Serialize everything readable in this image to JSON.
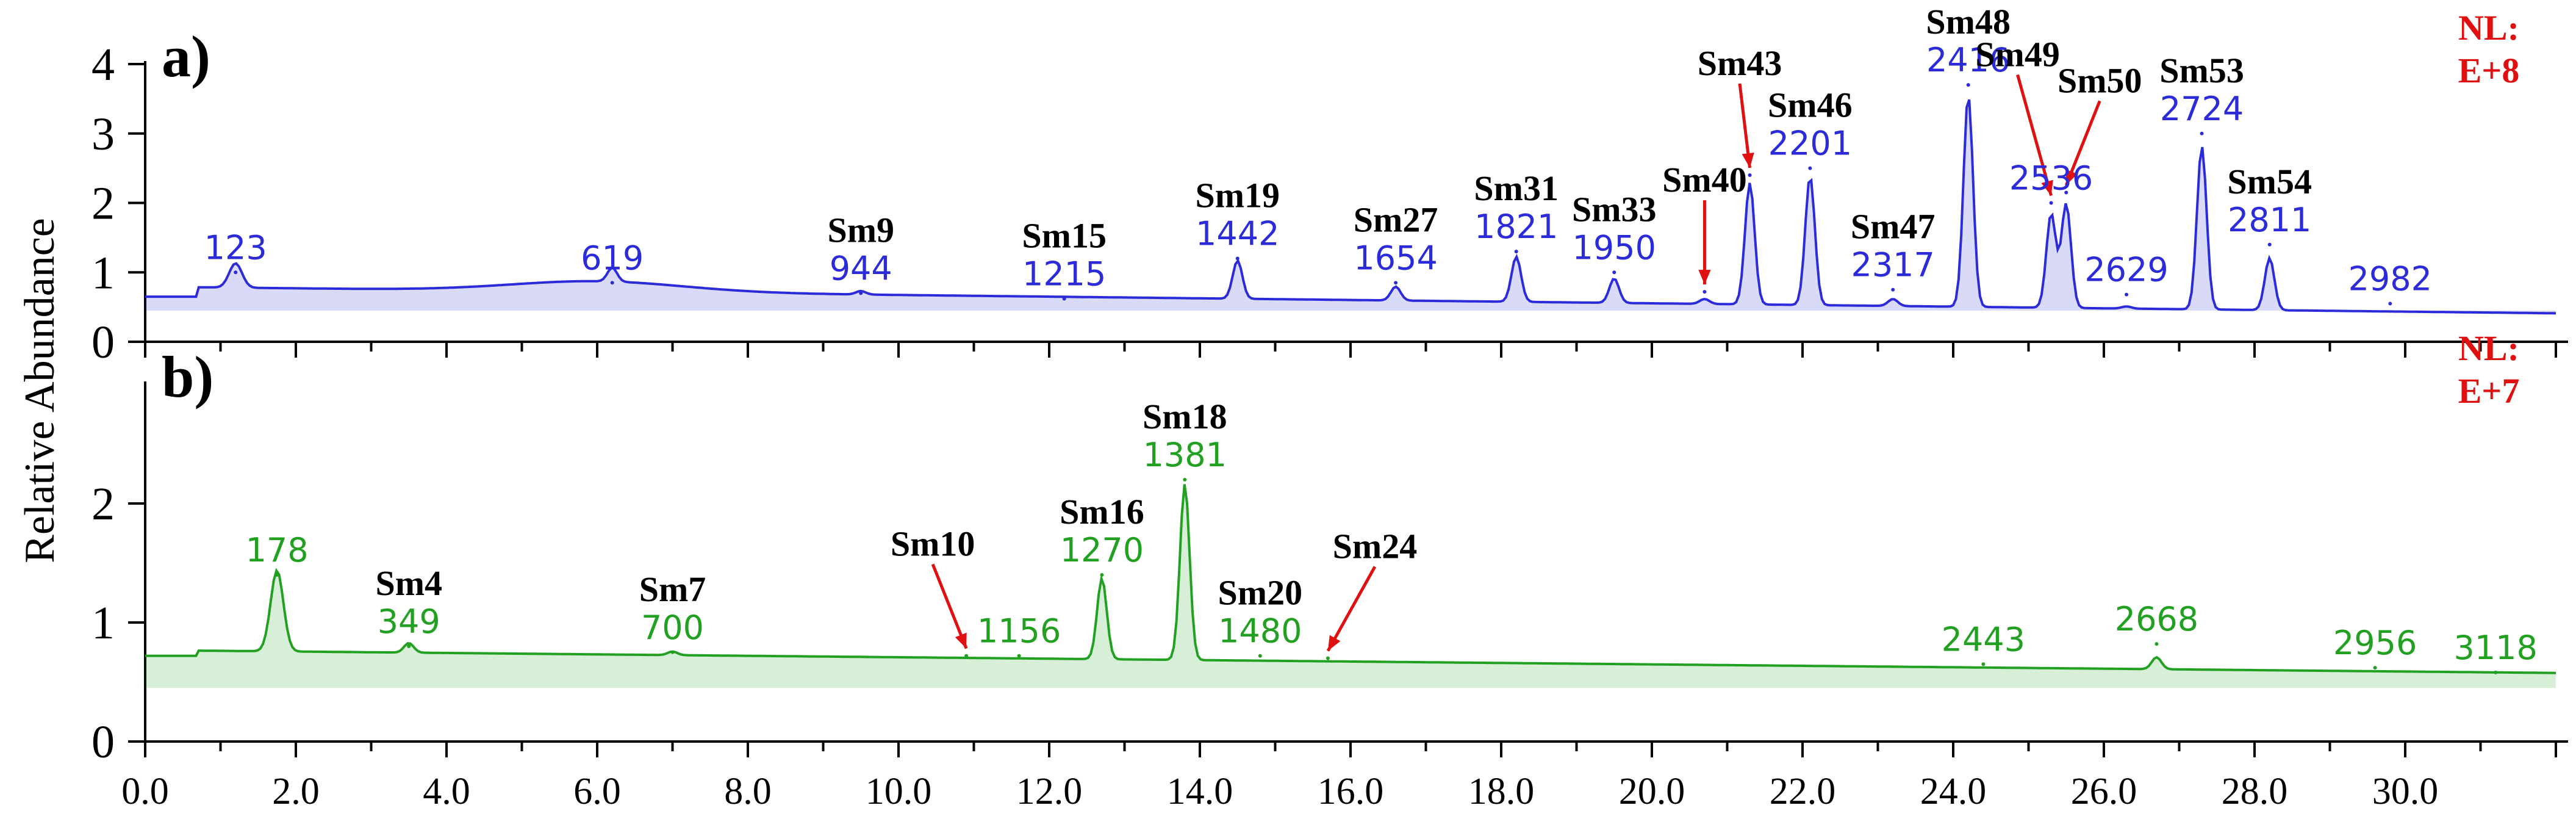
{
  "chart_data": [
    {
      "panel": "a)",
      "type": "line",
      "title": "",
      "xlabel": "",
      "ylabel": "Relative Abundance",
      "xlim": [
        0.0,
        32.0
      ],
      "ylim": [
        0,
        4
      ],
      "yticks": [
        "0",
        "1",
        "2",
        "3",
        "4"
      ],
      "normalization": {
        "line1": "NL:",
        "line2": "E+8"
      },
      "color": "#2b2bd9",
      "baseline": 0.65,
      "peaks": [
        {
          "x": 1.2,
          "y": 1.0,
          "label": "123",
          "compound": ""
        },
        {
          "x": 6.2,
          "y": 0.85,
          "label": "619",
          "compound": ""
        },
        {
          "x": 9.5,
          "y": 0.7,
          "label": "944",
          "compound": "Sm9"
        },
        {
          "x": 12.2,
          "y": 0.62,
          "label": "1215",
          "compound": "Sm15"
        },
        {
          "x": 14.5,
          "y": 1.2,
          "label": "1442",
          "compound": "Sm19"
        },
        {
          "x": 16.6,
          "y": 0.85,
          "label": "1654",
          "compound": "Sm27"
        },
        {
          "x": 18.2,
          "y": 1.3,
          "label": "1821",
          "compound": "Sm31"
        },
        {
          "x": 19.5,
          "y": 1.0,
          "label": "1950",
          "compound": "Sm33"
        },
        {
          "x": 20.7,
          "y": 0.72,
          "label": "",
          "compound": "Sm40"
        },
        {
          "x": 21.3,
          "y": 2.4,
          "label": "",
          "compound": "Sm43"
        },
        {
          "x": 22.1,
          "y": 2.5,
          "label": "2201",
          "compound": "Sm46"
        },
        {
          "x": 23.2,
          "y": 0.75,
          "label": "2317",
          "compound": "Sm47"
        },
        {
          "x": 24.2,
          "y": 3.7,
          "label": "2416",
          "compound": "Sm48"
        },
        {
          "x": 25.3,
          "y": 2.0,
          "label": "2536",
          "compound": "Sm49"
        },
        {
          "x": 25.5,
          "y": 2.15,
          "label": "",
          "compound": "Sm50"
        },
        {
          "x": 26.3,
          "y": 0.68,
          "label": "2629",
          "compound": ""
        },
        {
          "x": 27.3,
          "y": 3.0,
          "label": "2724",
          "compound": "Sm53"
        },
        {
          "x": 28.2,
          "y": 1.4,
          "label": "2811",
          "compound": "Sm54"
        },
        {
          "x": 29.8,
          "y": 0.55,
          "label": "2982",
          "compound": ""
        }
      ]
    },
    {
      "panel": "b)",
      "type": "line",
      "title": "",
      "xlabel": "",
      "ylabel": "Relative Abundance",
      "xlim": [
        0.0,
        32.0
      ],
      "ylim": [
        0,
        3
      ],
      "yticks": [
        "0",
        "1",
        "2"
      ],
      "xticks": [
        "0.0",
        "2.0",
        "4.0",
        "6.0",
        "8.0",
        "10.0",
        "12.0",
        "14.0",
        "16.0",
        "18.0",
        "20.0",
        "22.0",
        "24.0",
        "26.0",
        "28.0",
        "30.0"
      ],
      "normalization": {
        "line1": "NL:",
        "line2": "E+7"
      },
      "color": "#22a022",
      "baseline": 0.72,
      "peaks": [
        {
          "x": 1.75,
          "y": 1.4,
          "label": "178",
          "compound": ""
        },
        {
          "x": 3.5,
          "y": 0.8,
          "label": "349",
          "compound": "Sm4"
        },
        {
          "x": 7.0,
          "y": 0.75,
          "label": "700",
          "compound": "Sm7"
        },
        {
          "x": 10.9,
          "y": 0.72,
          "label": "",
          "compound": "Sm10"
        },
        {
          "x": 11.6,
          "y": 0.72,
          "label": "1156",
          "compound": ""
        },
        {
          "x": 12.7,
          "y": 1.4,
          "label": "1270",
          "compound": "Sm16"
        },
        {
          "x": 13.8,
          "y": 2.2,
          "label": "1381",
          "compound": "Sm18"
        },
        {
          "x": 14.8,
          "y": 0.72,
          "label": "1480",
          "compound": "Sm20"
        },
        {
          "x": 15.7,
          "y": 0.7,
          "label": "",
          "compound": "Sm24"
        },
        {
          "x": 24.4,
          "y": 0.65,
          "label": "2443",
          "compound": ""
        },
        {
          "x": 26.7,
          "y": 0.82,
          "label": "2668",
          "compound": ""
        },
        {
          "x": 29.6,
          "y": 0.62,
          "label": "2956",
          "compound": ""
        },
        {
          "x": 31.2,
          "y": 0.58,
          "label": "3118",
          "compound": ""
        }
      ]
    }
  ]
}
